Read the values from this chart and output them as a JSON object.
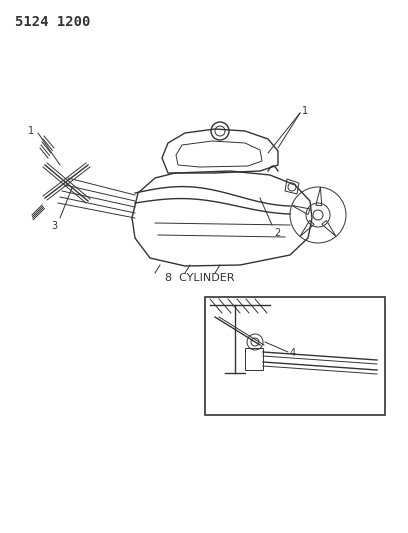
{
  "title_code": "5124 1200",
  "label_8cyl": "8  CYLINDER",
  "bg_color": "#ffffff",
  "line_color": "#333333",
  "label_color": "#333333",
  "title_fontsize": 10,
  "label_fontsize": 7,
  "fig_width": 4.08,
  "fig_height": 5.33,
  "dpi": 100
}
